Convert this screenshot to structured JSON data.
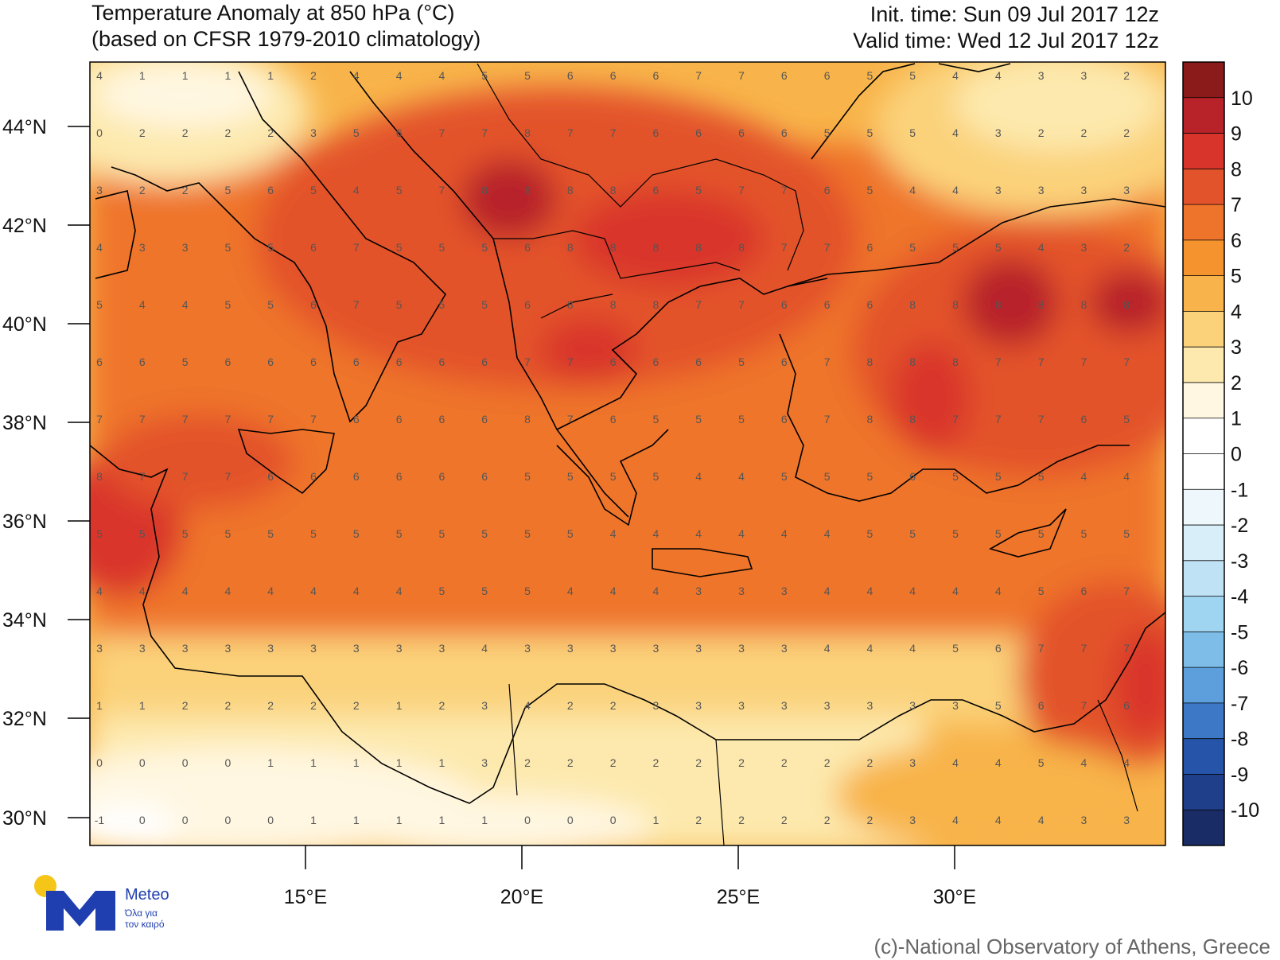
{
  "header": {
    "title_line1": "Temperature Anomaly at 850 hPa (°C)",
    "title_line2": "(based on CFSR 1979-2010 climatology)",
    "init_time": "Init. time: Sun 09 Jul 2017 12z",
    "valid_time": "Valid time: Wed 12 Jul 2017 12z"
  },
  "axes": {
    "lat_labels": [
      "44°N",
      "42°N",
      "40°N",
      "38°N",
      "36°N",
      "34°N",
      "32°N",
      "30°N"
    ],
    "lon_labels": [
      "15°E",
      "20°E",
      "25°E",
      "30°E"
    ]
  },
  "colorbar": {
    "labels": [
      "10",
      "9",
      "8",
      "7",
      "6",
      "5",
      "4",
      "3",
      "2",
      "1",
      "0",
      "-1",
      "-2",
      "-3",
      "-4",
      "-5",
      "-6",
      "-7",
      "-8",
      "-9",
      "-10"
    ],
    "colors": [
      "#8b1a1a",
      "#b8232a",
      "#d9342b",
      "#e3532b",
      "#ef742b",
      "#f5942f",
      "#f8b44a",
      "#fbd27a",
      "#fde9ad",
      "#fff7e2",
      "#ffffff",
      "#ffffff",
      "#eef7fb",
      "#d8eef8",
      "#bfe3f5",
      "#a0d5f1",
      "#7dbde8",
      "#5d9fdc",
      "#3d78c6",
      "#2654a8",
      "#1f3f8a",
      "#1a2c66"
    ]
  },
  "map_values": [
    [
      "4",
      "1",
      "1",
      "1",
      "1",
      "2",
      "4",
      "4",
      "4",
      "5",
      "5",
      "6",
      "6",
      "6",
      "7",
      "7",
      "6",
      "6",
      "5",
      "5",
      "4",
      "4",
      "3",
      "3",
      "2"
    ],
    [
      "0",
      "2",
      "2",
      "2",
      "2",
      "3",
      "5",
      "6",
      "7",
      "7",
      "8",
      "7",
      "7",
      "6",
      "6",
      "6",
      "6",
      "5",
      "5",
      "5",
      "4",
      "3",
      "2",
      "2",
      "2"
    ],
    [
      "3",
      "2",
      "2",
      "5",
      "6",
      "5",
      "4",
      "5",
      "7",
      "8",
      "8",
      "8",
      "8",
      "6",
      "5",
      "7",
      "7",
      "6",
      "5",
      "4",
      "4",
      "3",
      "3",
      "3",
      "3"
    ],
    [
      "4",
      "3",
      "3",
      "5",
      "5",
      "6",
      "7",
      "5",
      "5",
      "5",
      "6",
      "8",
      "8",
      "8",
      "8",
      "8",
      "7",
      "7",
      "6",
      "5",
      "5",
      "5",
      "4",
      "3",
      "2"
    ],
    [
      "5",
      "4",
      "4",
      "5",
      "5",
      "6",
      "7",
      "5",
      "5",
      "5",
      "6",
      "8",
      "8",
      "8",
      "7",
      "7",
      "6",
      "6",
      "6",
      "8",
      "8",
      "8",
      "8",
      "8",
      "8"
    ],
    [
      "6",
      "6",
      "5",
      "6",
      "6",
      "6",
      "6",
      "6",
      "6",
      "6",
      "7",
      "7",
      "6",
      "6",
      "6",
      "5",
      "6",
      "7",
      "8",
      "8",
      "8",
      "7",
      "7",
      "7",
      "7"
    ],
    [
      "7",
      "7",
      "7",
      "7",
      "7",
      "7",
      "6",
      "6",
      "6",
      "6",
      "8",
      "7",
      "6",
      "5",
      "5",
      "5",
      "6",
      "7",
      "8",
      "8",
      "7",
      "7",
      "7",
      "6",
      "5"
    ],
    [
      "8",
      "7",
      "7",
      "7",
      "6",
      "6",
      "6",
      "6",
      "6",
      "6",
      "5",
      "5",
      "5",
      "5",
      "4",
      "4",
      "5",
      "5",
      "5",
      "6",
      "5",
      "5",
      "5",
      "4",
      "4"
    ],
    [
      "5",
      "5",
      "5",
      "5",
      "5",
      "5",
      "5",
      "5",
      "5",
      "5",
      "5",
      "5",
      "4",
      "4",
      "4",
      "4",
      "4",
      "4",
      "5",
      "5",
      "5",
      "5",
      "5",
      "5",
      "5"
    ],
    [
      "4",
      "4",
      "4",
      "4",
      "4",
      "4",
      "4",
      "4",
      "5",
      "5",
      "5",
      "4",
      "4",
      "4",
      "3",
      "3",
      "3",
      "4",
      "4",
      "4",
      "4",
      "4",
      "5",
      "6",
      "7"
    ],
    [
      "3",
      "3",
      "3",
      "3",
      "3",
      "3",
      "3",
      "3",
      "3",
      "4",
      "3",
      "3",
      "3",
      "3",
      "3",
      "3",
      "3",
      "4",
      "4",
      "4",
      "5",
      "6",
      "7",
      "7",
      "7"
    ],
    [
      "1",
      "1",
      "2",
      "2",
      "2",
      "2",
      "2",
      "1",
      "2",
      "3",
      "4",
      "2",
      "2",
      "3",
      "3",
      "3",
      "3",
      "3",
      "3",
      "3",
      "3",
      "5",
      "6",
      "7",
      "6"
    ],
    [
      "0",
      "0",
      "0",
      "0",
      "1",
      "1",
      "1",
      "1",
      "1",
      "3",
      "2",
      "2",
      "2",
      "2",
      "2",
      "2",
      "2",
      "2",
      "2",
      "3",
      "4",
      "4",
      "5",
      "4",
      "4"
    ],
    [
      "-1",
      "0",
      "0",
      "0",
      "0",
      "1",
      "1",
      "1",
      "1",
      "1",
      "0",
      "0",
      "0",
      "1",
      "2",
      "2",
      "2",
      "2",
      "2",
      "3",
      "4",
      "4",
      "4",
      "3",
      "3"
    ]
  ],
  "credit": "(c)-National Observatory of Athens, Greece",
  "logo": {
    "name": "Meteo",
    "tagline1": "Όλα για",
    "tagline2": "τον καιρό"
  }
}
